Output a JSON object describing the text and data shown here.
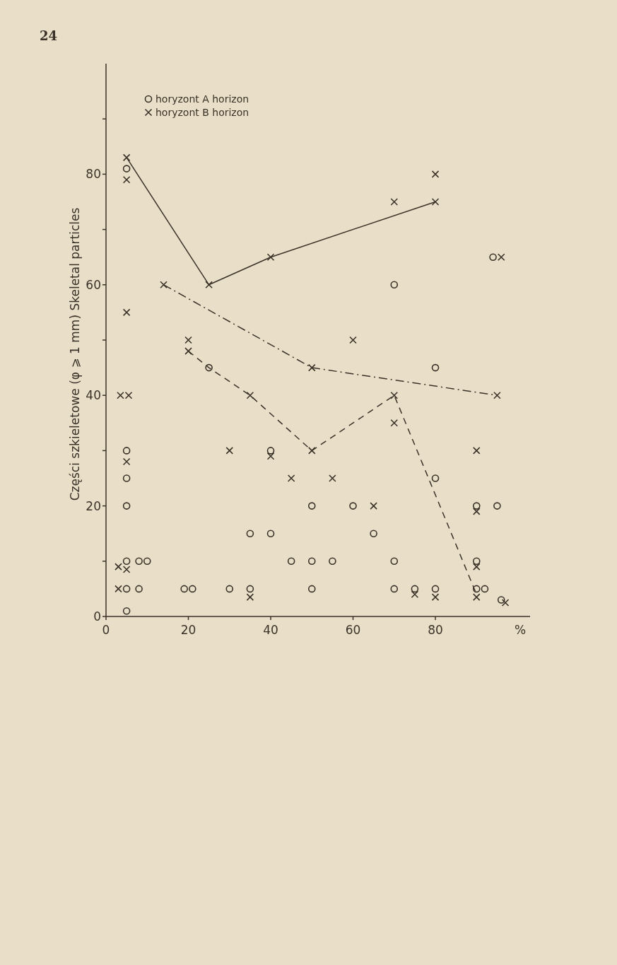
{
  "chart_data": {
    "type": "scatter",
    "ylabel": "Części szkieletowe (φ ⩾ 1 mm) Skeletal particles",
    "xlabel": "%",
    "annotations": [
      "24"
    ],
    "xlim": [
      0,
      103
    ],
    "ylim": [
      0,
      100
    ],
    "xticks": [
      0,
      20,
      40,
      60,
      80
    ],
    "yticks": [
      0,
      {
        "value": 10,
        "label": null
      },
      20,
      {
        "value": 30,
        "label": null
      },
      40,
      {
        "value": 50,
        "label": null
      },
      60,
      {
        "value": 70,
        "label": null
      },
      80,
      {
        "value": 90,
        "label": null
      }
    ],
    "grid": false,
    "legend": "top left",
    "series": [
      {
        "name": "horyzont A horizon",
        "marker": "circle",
        "color": "#3a3228",
        "x": [
          5,
          5,
          5,
          5,
          5,
          8,
          10,
          5,
          8,
          5,
          19,
          21,
          30,
          35,
          35,
          40,
          40,
          45,
          50,
          50,
          50,
          55,
          60,
          65,
          70,
          70,
          75,
          80,
          80,
          80,
          70,
          90,
          95,
          90,
          90,
          92,
          96,
          94,
          25
        ],
        "values": [
          81,
          30,
          25,
          20,
          10,
          10,
          10,
          5,
          5,
          1,
          5,
          5,
          5,
          5,
          15,
          15,
          30,
          10,
          10,
          5,
          20,
          10,
          20,
          15,
          10,
          5,
          5,
          5,
          25,
          45,
          60,
          20,
          20,
          10,
          5,
          5,
          3,
          65,
          45
        ]
      },
      {
        "name": "horyzont B horizon",
        "marker": "cross",
        "color": "#3a3228",
        "x": [
          5,
          5,
          5,
          3.5,
          5.5,
          5,
          3,
          5,
          3,
          35,
          30,
          40,
          45,
          55,
          65,
          70,
          70,
          50,
          35,
          20,
          20,
          14,
          25,
          40,
          50,
          60,
          70,
          80,
          80,
          95,
          96,
          90,
          90,
          90,
          90,
          80,
          75,
          97
        ],
        "values": [
          83,
          79,
          55,
          40,
          40,
          28,
          9,
          8.5,
          5,
          3.5,
          30,
          29,
          25,
          25,
          20,
          35,
          40,
          30,
          40,
          50,
          48,
          60,
          60,
          65,
          45,
          50,
          75,
          75,
          80,
          40,
          65,
          30,
          19,
          9,
          3.5,
          3.5,
          4,
          2.5
        ]
      },
      {
        "type": "line",
        "line_style": "solid",
        "marker": "none",
        "color": "#3a3228",
        "x": [
          5,
          25,
          40,
          80
        ],
        "values": [
          83,
          60,
          65,
          75
        ]
      },
      {
        "type": "line",
        "line_style": "dashdot",
        "marker": "none",
        "color": "#3a3228",
        "x": [
          14,
          50,
          95
        ],
        "values": [
          60,
          45,
          40
        ]
      },
      {
        "type": "line",
        "line_style": "dashed",
        "marker": "none",
        "color": "#3a3228",
        "x": [
          20,
          25,
          35,
          50,
          70,
          90
        ],
        "values": [
          48,
          45,
          40,
          30,
          40,
          4
        ]
      }
    ]
  }
}
